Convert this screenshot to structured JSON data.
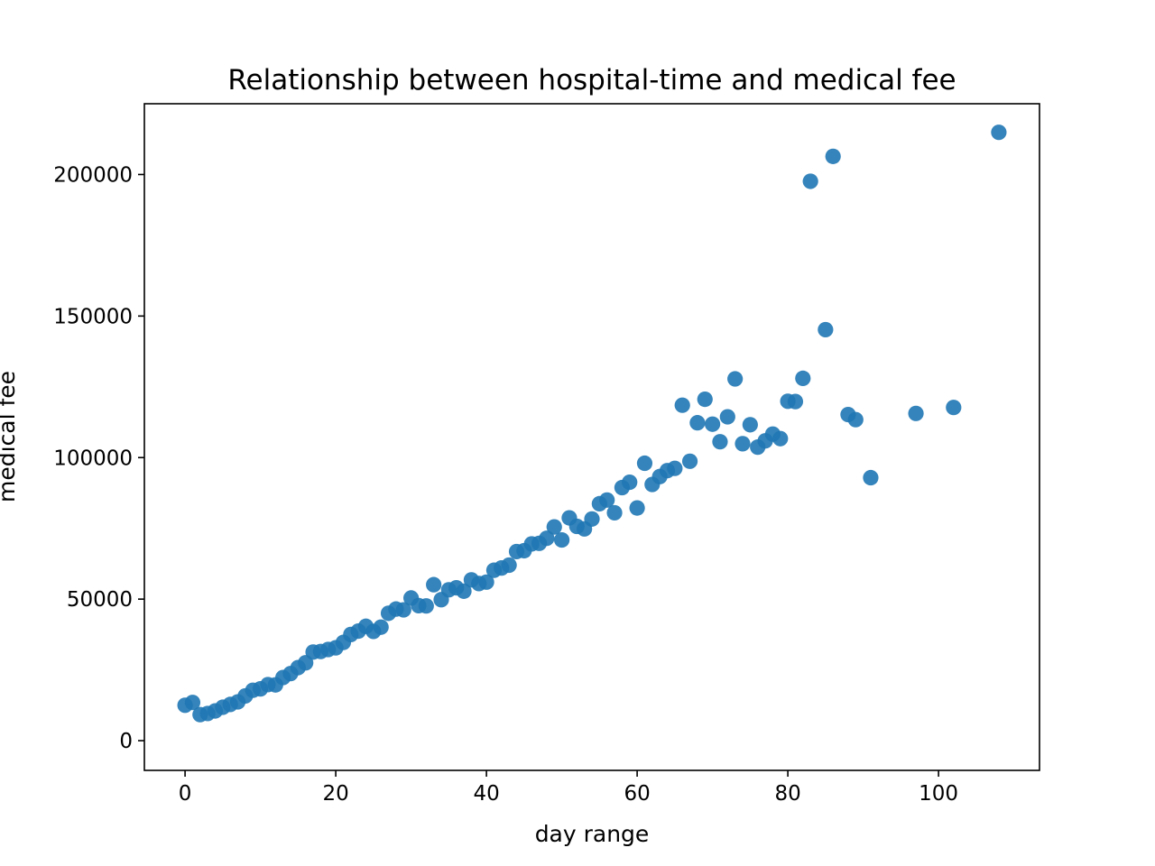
{
  "chart_data": {
    "type": "scatter",
    "title": "Relationship between hospital-time and medical fee",
    "xlabel": "day range",
    "ylabel": "medical fee",
    "xlim": [
      -5.4,
      113.4
    ],
    "ylim": [
      -10500,
      225000
    ],
    "xticks": [
      0,
      20,
      40,
      60,
      80,
      100
    ],
    "xtick_labels": [
      "0",
      "20",
      "40",
      "60",
      "80",
      "100"
    ],
    "yticks": [
      0,
      50000,
      100000,
      150000,
      200000
    ],
    "ytick_labels": [
      "0",
      "50000",
      "100000",
      "150000",
      "200000"
    ],
    "grid": false,
    "color": "#1f77b4",
    "points": [
      [
        0,
        12500
      ],
      [
        1,
        13500
      ],
      [
        2,
        9200
      ],
      [
        3,
        9600
      ],
      [
        4,
        10500
      ],
      [
        5,
        11800
      ],
      [
        6,
        12800
      ],
      [
        7,
        13700
      ],
      [
        8,
        15800
      ],
      [
        9,
        17800
      ],
      [
        10,
        18300
      ],
      [
        11,
        19800
      ],
      [
        12,
        19700
      ],
      [
        13,
        22300
      ],
      [
        14,
        23700
      ],
      [
        15,
        25800
      ],
      [
        16,
        27500
      ],
      [
        17,
        31300
      ],
      [
        18,
        31500
      ],
      [
        19,
        32200
      ],
      [
        20,
        32800
      ],
      [
        21,
        34700
      ],
      [
        22,
        37500
      ],
      [
        23,
        38700
      ],
      [
        24,
        40400
      ],
      [
        25,
        38600
      ],
      [
        26,
        40100
      ],
      [
        27,
        45000
      ],
      [
        28,
        46500
      ],
      [
        29,
        46200
      ],
      [
        30,
        50400
      ],
      [
        31,
        47700
      ],
      [
        32,
        47600
      ],
      [
        33,
        55100
      ],
      [
        34,
        49800
      ],
      [
        35,
        53300
      ],
      [
        36,
        54000
      ],
      [
        37,
        52800
      ],
      [
        38,
        56800
      ],
      [
        39,
        55500
      ],
      [
        40,
        56000
      ],
      [
        41,
        60200
      ],
      [
        42,
        61000
      ],
      [
        43,
        62000
      ],
      [
        44,
        66800
      ],
      [
        45,
        67100
      ],
      [
        46,
        69500
      ],
      [
        47,
        69700
      ],
      [
        48,
        71500
      ],
      [
        49,
        75500
      ],
      [
        50,
        70900
      ],
      [
        51,
        78700
      ],
      [
        52,
        75700
      ],
      [
        53,
        74800
      ],
      [
        54,
        78300
      ],
      [
        55,
        83700
      ],
      [
        56,
        85000
      ],
      [
        57,
        80500
      ],
      [
        58,
        89400
      ],
      [
        59,
        91300
      ],
      [
        60,
        82200
      ],
      [
        61,
        98000
      ],
      [
        62,
        90500
      ],
      [
        63,
        93300
      ],
      [
        64,
        95400
      ],
      [
        65,
        96200
      ],
      [
        66,
        118500
      ],
      [
        67,
        98700
      ],
      [
        68,
        112300
      ],
      [
        69,
        120600
      ],
      [
        70,
        111800
      ],
      [
        71,
        105600
      ],
      [
        72,
        114400
      ],
      [
        73,
        127800
      ],
      [
        74,
        104900
      ],
      [
        75,
        111600
      ],
      [
        76,
        103700
      ],
      [
        77,
        105900
      ],
      [
        78,
        108300
      ],
      [
        79,
        106700
      ],
      [
        80,
        119900
      ],
      [
        81,
        119800
      ],
      [
        82,
        128000
      ],
      [
        83,
        197600
      ],
      [
        85,
        145200
      ],
      [
        86,
        206400
      ],
      [
        88,
        115200
      ],
      [
        89,
        113400
      ],
      [
        91,
        92900
      ],
      [
        97,
        115600
      ],
      [
        102,
        117700
      ],
      [
        108,
        214900
      ]
    ]
  }
}
